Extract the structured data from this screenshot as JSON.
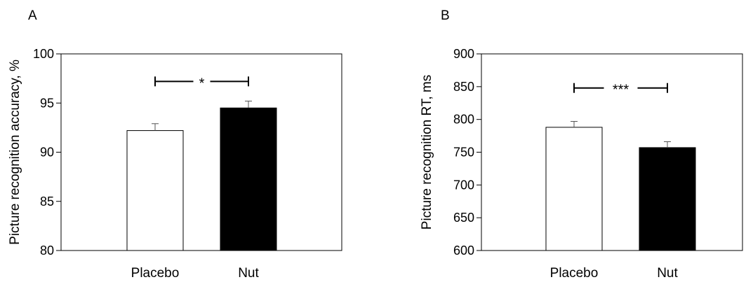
{
  "colors": {
    "axis": "#000000",
    "placebo_fill": "#ffffff",
    "nut_fill": "#000000"
  },
  "chart_data": [
    {
      "type": "bar",
      "panel_label": "A",
      "ylabel": "Picture recognition accuracy, %",
      "categories": [
        "Placebo",
        "Nut"
      ],
      "values": [
        92.2,
        94.5
      ],
      "errors": [
        0.7,
        0.7
      ],
      "ylim": [
        80,
        100
      ],
      "yticks": [
        80,
        85,
        90,
        95,
        100
      ],
      "bar_colors": [
        "#ffffff",
        "#000000"
      ],
      "significance": {
        "label": "*",
        "from": "Placebo",
        "to": "Nut",
        "y": 97.2
      },
      "grid": false
    },
    {
      "type": "bar",
      "panel_label": "B",
      "ylabel": "Picture recognition RT, ms",
      "categories": [
        "Placebo",
        "Nut"
      ],
      "values": [
        788,
        757
      ],
      "errors": [
        9,
        9
      ],
      "ylim": [
        600,
        900
      ],
      "yticks": [
        600,
        650,
        700,
        750,
        800,
        850,
        900
      ],
      "bar_colors": [
        "#ffffff",
        "#000000"
      ],
      "significance": {
        "label": "***",
        "from": "Placebo",
        "to": "Nut",
        "y": 848
      },
      "grid": false
    }
  ]
}
